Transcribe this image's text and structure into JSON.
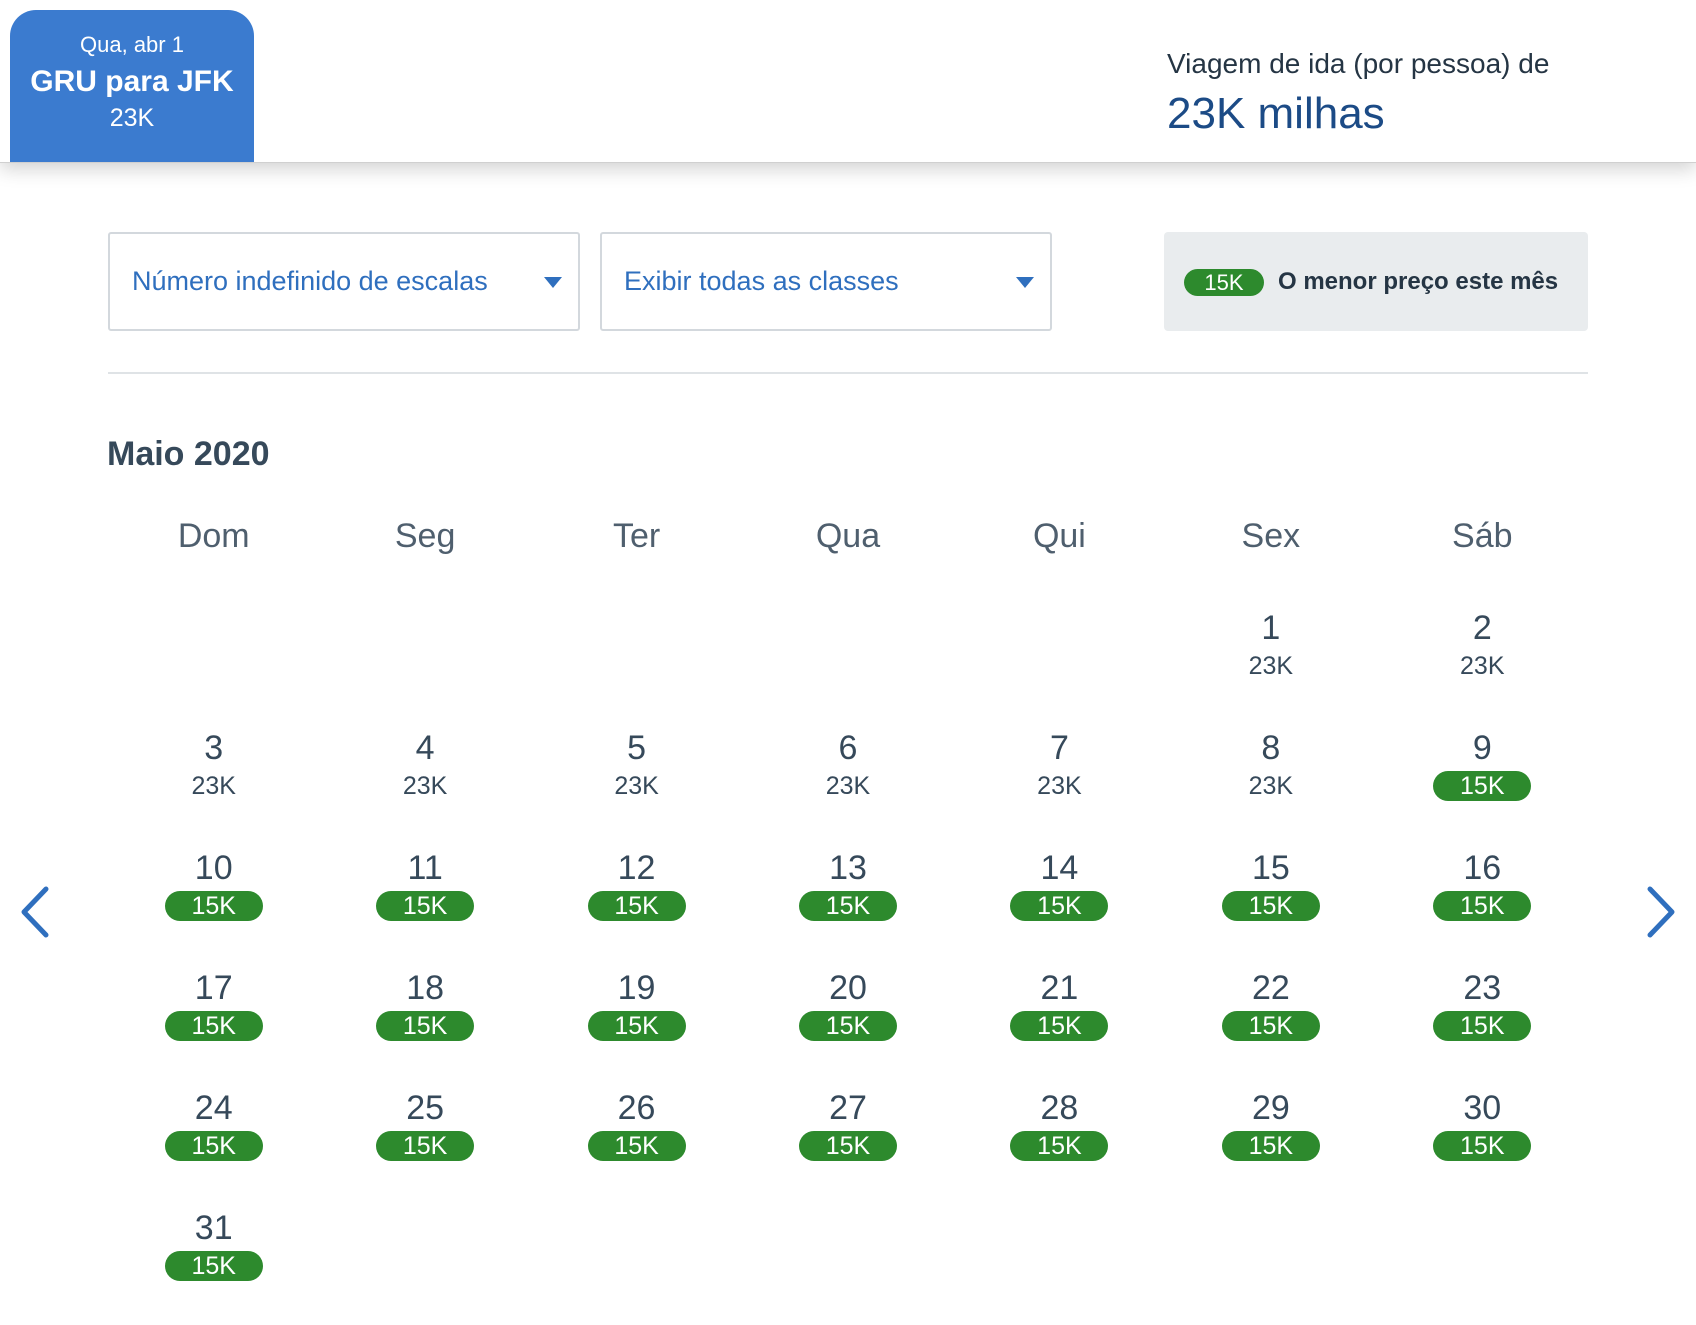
{
  "flight_tab": {
    "date": "Qua, abr 1",
    "route": "GRU para JFK",
    "price": "23K"
  },
  "trip": {
    "label": "Viagem de ida (por pessoa) de",
    "price": "23K milhas"
  },
  "filters": {
    "stops": "Número indefinido de escalas",
    "classes": "Exibir todas as classes"
  },
  "legend": {
    "badge": "15K",
    "text": "O menor preço este mês"
  },
  "calendar": {
    "month": "Maio 2020",
    "weekdays": [
      "Dom",
      "Seg",
      "Ter",
      "Qua",
      "Qui",
      "Sex",
      "Sáb"
    ],
    "leading_blank_days": 5,
    "days": [
      {
        "day": "1",
        "price": "23K",
        "lowest": false
      },
      {
        "day": "2",
        "price": "23K",
        "lowest": false
      },
      {
        "day": "3",
        "price": "23K",
        "lowest": false
      },
      {
        "day": "4",
        "price": "23K",
        "lowest": false
      },
      {
        "day": "5",
        "price": "23K",
        "lowest": false
      },
      {
        "day": "6",
        "price": "23K",
        "lowest": false
      },
      {
        "day": "7",
        "price": "23K",
        "lowest": false
      },
      {
        "day": "8",
        "price": "23K",
        "lowest": false
      },
      {
        "day": "9",
        "price": "15K",
        "lowest": true
      },
      {
        "day": "10",
        "price": "15K",
        "lowest": true
      },
      {
        "day": "11",
        "price": "15K",
        "lowest": true
      },
      {
        "day": "12",
        "price": "15K",
        "lowest": true
      },
      {
        "day": "13",
        "price": "15K",
        "lowest": true
      },
      {
        "day": "14",
        "price": "15K",
        "lowest": true
      },
      {
        "day": "15",
        "price": "15K",
        "lowest": true
      },
      {
        "day": "16",
        "price": "15K",
        "lowest": true
      },
      {
        "day": "17",
        "price": "15K",
        "lowest": true
      },
      {
        "day": "18",
        "price": "15K",
        "lowest": true
      },
      {
        "day": "19",
        "price": "15K",
        "lowest": true
      },
      {
        "day": "20",
        "price": "15K",
        "lowest": true
      },
      {
        "day": "21",
        "price": "15K",
        "lowest": true
      },
      {
        "day": "22",
        "price": "15K",
        "lowest": true
      },
      {
        "day": "23",
        "price": "15K",
        "lowest": true
      },
      {
        "day": "24",
        "price": "15K",
        "lowest": true
      },
      {
        "day": "25",
        "price": "15K",
        "lowest": true
      },
      {
        "day": "26",
        "price": "15K",
        "lowest": true
      },
      {
        "day": "27",
        "price": "15K",
        "lowest": true
      },
      {
        "day": "28",
        "price": "15K",
        "lowest": true
      },
      {
        "day": "29",
        "price": "15K",
        "lowest": true
      },
      {
        "day": "30",
        "price": "15K",
        "lowest": true
      },
      {
        "day": "31",
        "price": "15K",
        "lowest": true
      }
    ]
  },
  "nav": {
    "prev_icon": "chevron-left-icon",
    "next_icon": "chevron-right-icon"
  },
  "colors": {
    "accent": "#3b7bcf",
    "link": "#2f6fbe",
    "lowest_price": "#2d8a2d",
    "text": "#36495a"
  }
}
